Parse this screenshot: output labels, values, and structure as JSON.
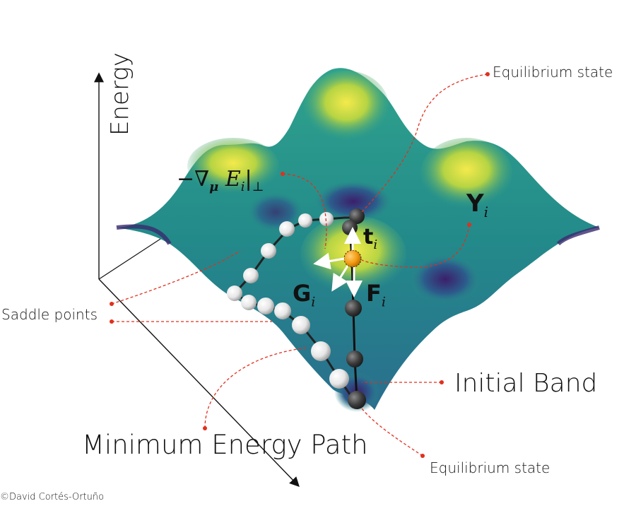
{
  "axis": {
    "energy_label": "Energy"
  },
  "labels": {
    "equilibrium_top": "Equilibrium state",
    "equilibrium_bottom": "Equilibrium state",
    "saddle_points": "Saddle points",
    "initial_band": "Initial Band",
    "minimum_energy_path": "Minimum Energy Path",
    "credit": "©David Cortés-Ortuño"
  },
  "math": {
    "grad_perp": "−∇",
    "grad_sub": "μ",
    "grad_e": " E",
    "grad_i": "i",
    "grad_bar": "|",
    "grad_perp_sym": "⊥",
    "Y": "Y",
    "Y_sub": "i",
    "t": "t",
    "t_sub": "i",
    "G": "G",
    "G_sub": "i",
    "F": "F",
    "F_sub": "i"
  },
  "colors": {
    "surface_peak": "#f2e44a",
    "surface_mid": "#2a9a8a",
    "surface_low": "#3a2a6e",
    "leader_line": "#e0301e",
    "image_orange": "#f39c12"
  }
}
